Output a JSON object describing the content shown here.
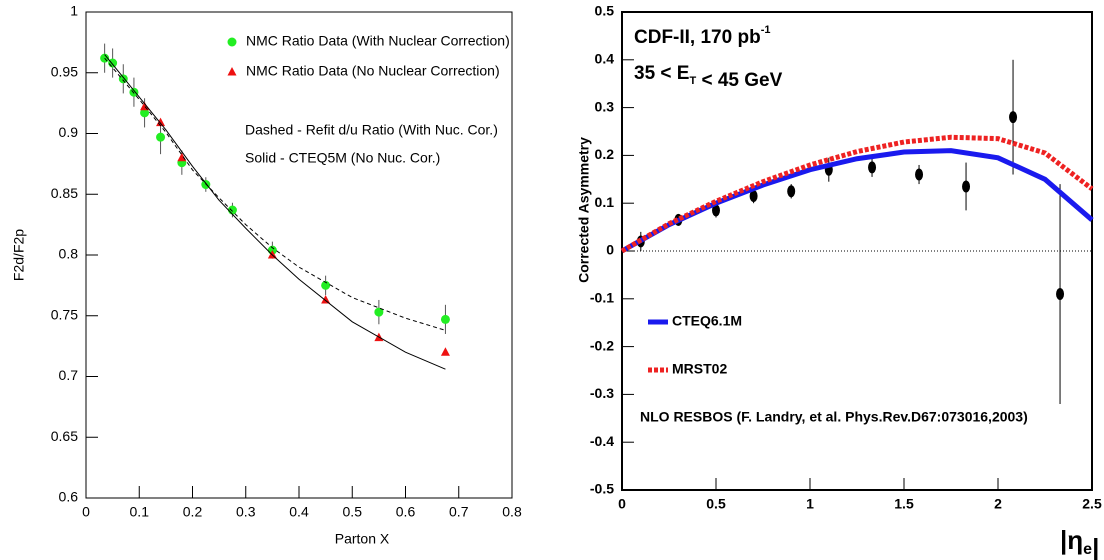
{
  "chart_data": [
    {
      "type": "scatter",
      "xlabel": "Parton X",
      "ylabel": "F2d/F2p",
      "xlim": [
        0,
        0.8
      ],
      "ylim": [
        0.6,
        1
      ],
      "xticks": [
        0,
        0.1,
        0.2,
        0.3,
        0.4,
        0.5,
        0.6,
        0.7,
        0.8
      ],
      "yticks": [
        0.6,
        0.65,
        0.7,
        0.75,
        0.8,
        0.85,
        0.9,
        0.95,
        1
      ],
      "annotations": [
        "Dashed - Refit d/u Ratio (With Nuc. Cor.)",
        "Solid - CTEQ5M (No Nuc. Cor.)"
      ],
      "series": [
        {
          "name": "NMC Ratio Data (With Nuclear Correction)",
          "color": "#22ee22",
          "style": "markers",
          "marker": "circle",
          "x": [
            0.035,
            0.05,
            0.07,
            0.09,
            0.11,
            0.14,
            0.18,
            0.225,
            0.275,
            0.35,
            0.45,
            0.55,
            0.675
          ],
          "values": [
            0.962,
            0.958,
            0.945,
            0.934,
            0.917,
            0.897,
            0.876,
            0.858,
            0.837,
            0.804,
            0.775,
            0.753,
            0.747
          ],
          "errors": [
            0.012,
            0.012,
            0.012,
            0.012,
            0.012,
            0.014,
            0.01,
            0.006,
            0.006,
            0.007,
            0.008,
            0.01,
            0.012
          ]
        },
        {
          "name": "NMC Ratio Data (No Nuclear Correction)",
          "color": "#ee1111",
          "style": "markers",
          "marker": "triangle",
          "x": [
            0.11,
            0.14,
            0.18,
            0.35,
            0.45,
            0.55,
            0.675
          ],
          "values": [
            0.922,
            0.909,
            0.88,
            0.8,
            0.763,
            0.732,
            0.72
          ]
        },
        {
          "color": "#000000",
          "style": "line",
          "dash": "4,3",
          "x": [
            0.035,
            0.1,
            0.15,
            0.2,
            0.25,
            0.3,
            0.35,
            0.4,
            0.5,
            0.6,
            0.675
          ],
          "values": [
            0.962,
            0.928,
            0.901,
            0.87,
            0.847,
            0.825,
            0.806,
            0.79,
            0.765,
            0.748,
            0.738
          ]
        },
        {
          "color": "#000000",
          "style": "line",
          "x": [
            0.035,
            0.1,
            0.15,
            0.2,
            0.25,
            0.3,
            0.35,
            0.4,
            0.5,
            0.6,
            0.675
          ],
          "values": [
            0.965,
            0.93,
            0.903,
            0.873,
            0.845,
            0.822,
            0.8,
            0.78,
            0.745,
            0.72,
            0.706
          ]
        }
      ]
    },
    {
      "type": "scatter",
      "ylabel": "Corrected Asymmetry",
      "xlabel_parts": [
        "|η",
        "e",
        "|"
      ],
      "title_parts": [
        "CDF-II, 170 pb",
        "-1"
      ],
      "subtitle_parts": [
        "35 < E",
        "T",
        " < 45 GeV"
      ],
      "note": "NLO RESBOS (F. Landry, et al. Phys.Rev.D67:073016,2003)",
      "xlim": [
        0,
        2.5
      ],
      "ylim": [
        -0.5,
        0.5
      ],
      "xticks": [
        0,
        0.5,
        1,
        1.5,
        2,
        2.5
      ],
      "yticks": [
        -0.5,
        -0.4,
        -0.3,
        -0.2,
        -0.1,
        0,
        0.1,
        0.2,
        0.3,
        0.4,
        0.5
      ],
      "series": [
        {
          "color": "#000000",
          "style": "markers",
          "marker": "ellipse",
          "x": [
            0.1,
            0.3,
            0.5,
            0.7,
            0.9,
            1.1,
            1.33,
            1.58,
            1.83,
            2.08,
            2.33
          ],
          "values": [
            0.02,
            0.065,
            0.085,
            0.115,
            0.125,
            0.17,
            0.175,
            0.16,
            0.135,
            0.28,
            -0.09
          ],
          "errors": [
            0.02,
            0.012,
            0.015,
            0.015,
            0.015,
            0.025,
            0.02,
            0.02,
            0.05,
            0.12,
            0.23
          ]
        },
        {
          "name": "CTEQ6.1M",
          "color": "#1a1aee",
          "style": "line",
          "width": 5,
          "x": [
            0,
            0.25,
            0.5,
            0.75,
            1,
            1.25,
            1.5,
            1.75,
            2,
            2.25,
            2.5
          ],
          "values": [
            0,
            0.055,
            0.1,
            0.138,
            0.17,
            0.193,
            0.207,
            0.21,
            0.195,
            0.15,
            0.065
          ]
        },
        {
          "name": "MRST02",
          "color": "#ee2222",
          "style": "line",
          "width": 5,
          "dash": "4,2",
          "x": [
            0,
            0.25,
            0.5,
            0.75,
            1,
            1.25,
            1.5,
            1.75,
            2,
            2.25,
            2.5
          ],
          "values": [
            0,
            0.057,
            0.104,
            0.145,
            0.18,
            0.208,
            0.228,
            0.238,
            0.235,
            0.205,
            0.13
          ]
        }
      ]
    }
  ]
}
